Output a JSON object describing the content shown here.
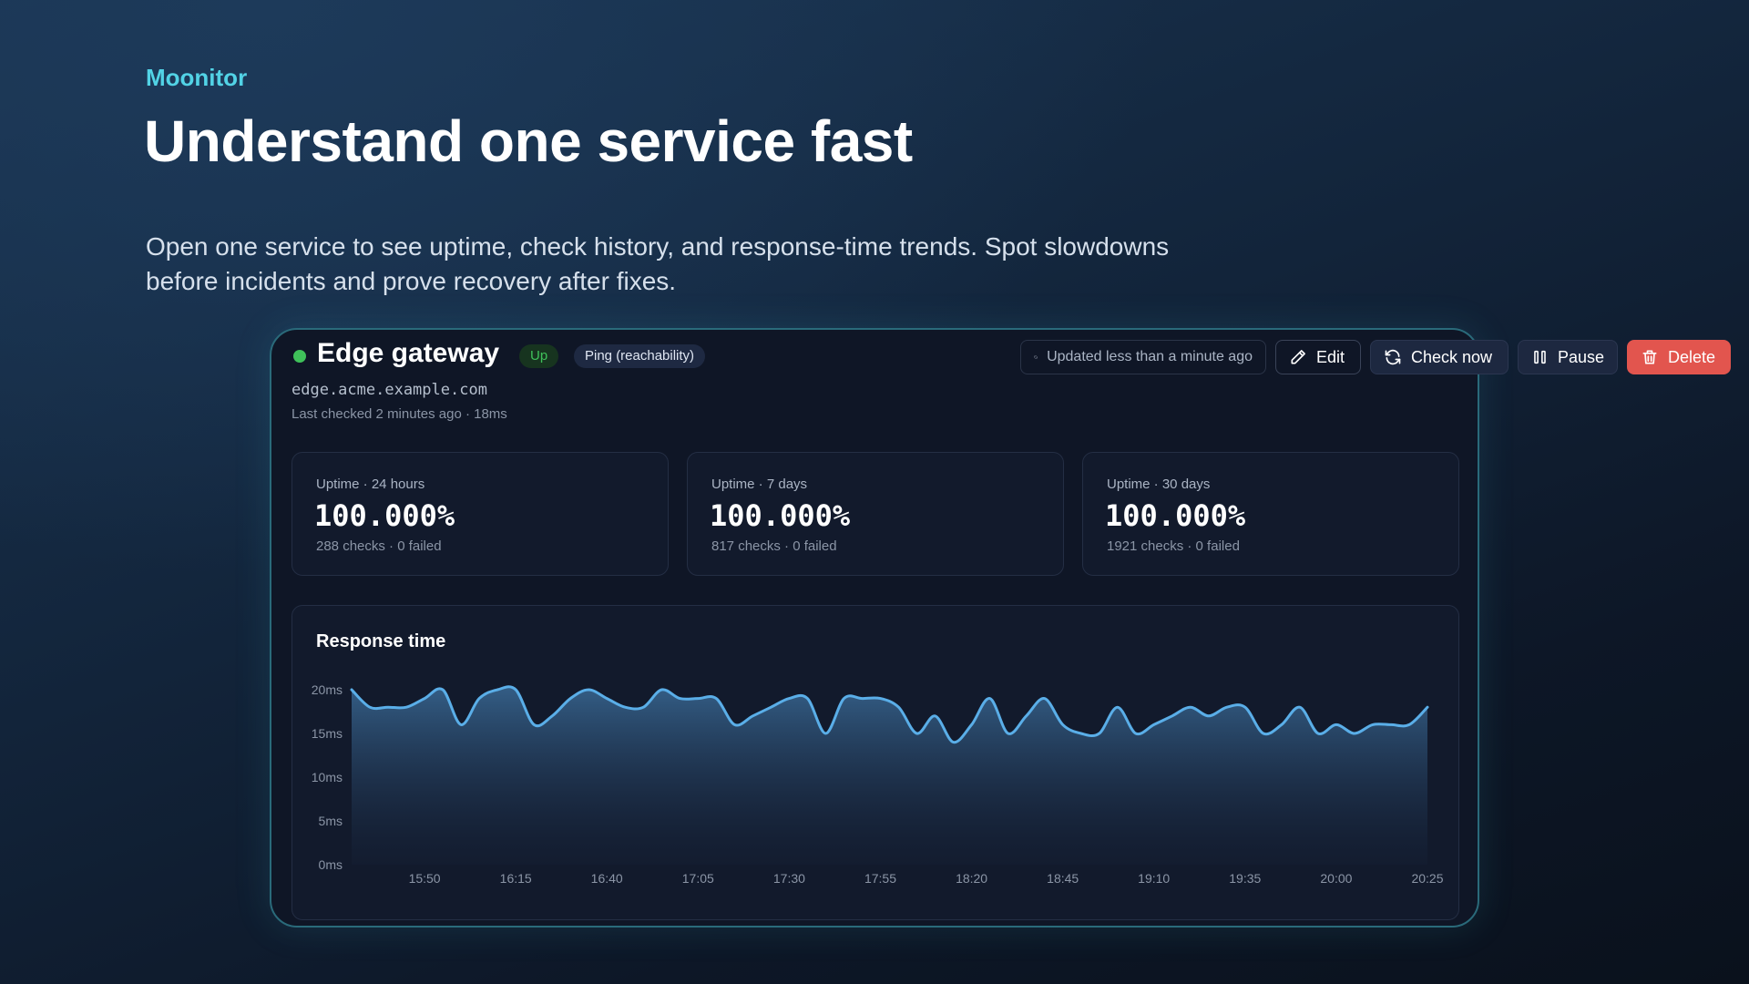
{
  "hero": {
    "brand": "Moonitor",
    "headline": "Understand one service fast",
    "description": "Open one service to see uptime, check history, and response-time trends. Spot slowdowns before incidents and prove recovery after fixes."
  },
  "service": {
    "name": "Edge gateway",
    "status_badge": "Up",
    "check_type": "Ping (reachability)",
    "host": "edge.acme.example.com",
    "last_checked": "Last checked 2 minutes ago · 18ms",
    "status_color": "#3fc15a"
  },
  "toolbar": {
    "updated_label": "Updated less than a minute ago",
    "edit_label": "Edit",
    "check_now_label": "Check now",
    "pause_label": "Pause",
    "delete_label": "Delete",
    "delete_color": "#e2554e"
  },
  "uptime_cards": [
    {
      "label": "Uptime · 24 hours",
      "value": "100.000%",
      "detail": "288 checks · 0 failed"
    },
    {
      "label": "Uptime · 7 days",
      "value": "100.000%",
      "detail": "817 checks · 0 failed"
    },
    {
      "label": "Uptime · 30 days",
      "value": "100.000%",
      "detail": "1921 checks · 0 failed"
    }
  ],
  "chart_data": {
    "type": "area",
    "title": "Response time",
    "xlabel": "",
    "ylabel": "",
    "ylim": [
      0,
      20
    ],
    "y_ticks": [
      "0ms",
      "5ms",
      "10ms",
      "15ms",
      "20ms"
    ],
    "y_tick_values": [
      0,
      5,
      10,
      15,
      20
    ],
    "x_ticks": [
      "15:50",
      "16:15",
      "16:40",
      "17:05",
      "17:30",
      "17:55",
      "18:20",
      "18:45",
      "19:10",
      "19:35",
      "20:00",
      "20:25"
    ],
    "x_tick_index": [
      4,
      9,
      14,
      19,
      24,
      29,
      34,
      39,
      44,
      49,
      54,
      59
    ],
    "line_color": "#5aaee8",
    "grid": false,
    "values": [
      20,
      18,
      18,
      18,
      19,
      20,
      16,
      19,
      20,
      20,
      16,
      17,
      19,
      20,
      19,
      18,
      18,
      20,
      19,
      19,
      19,
      16,
      17,
      18,
      19,
      19,
      15,
      19,
      19,
      19,
      18,
      15,
      17,
      14,
      16,
      19,
      15,
      17,
      19,
      16,
      15,
      15,
      18,
      15,
      16,
      17,
      18,
      17,
      18,
      18,
      15,
      16,
      18,
      15,
      16,
      15,
      16,
      16,
      16,
      18
    ]
  }
}
